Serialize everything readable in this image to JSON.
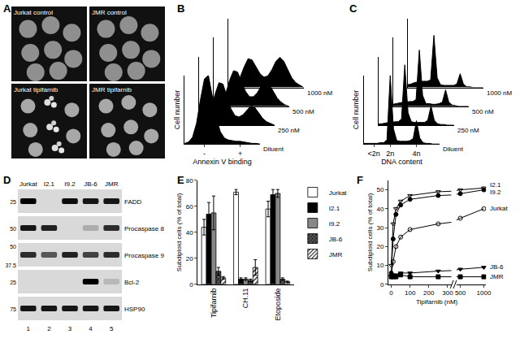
{
  "panel_labels": [
    "A",
    "B",
    "C",
    "D",
    "E",
    "F"
  ],
  "panel_a": {
    "images": [
      {
        "label": "Jurkat control"
      },
      {
        "label": "JMR control"
      },
      {
        "label": "Jurkat tipifarnib"
      },
      {
        "label": "JMR tipifarnib"
      }
    ]
  },
  "panel_d": {
    "lanes": [
      "Jurkat",
      "I2.1",
      "I9.2",
      "JB-6",
      "JMR"
    ],
    "lane_numbers": [
      1,
      2,
      3,
      4,
      5
    ],
    "blots": [
      {
        "protein": "FADD",
        "mw_markers": [
          25
        ],
        "intensity": [
          1,
          0,
          0.95,
          0.9,
          0.9
        ]
      },
      {
        "protein": "Procaspase 8",
        "mw_markers": [
          50
        ],
        "intensity": [
          0.9,
          0.85,
          0,
          0.2,
          0.8
        ]
      },
      {
        "protein": "Procaspase 9",
        "mw_markers": [
          50,
          37.5
        ],
        "intensity": [
          0.8,
          0.6,
          0.85,
          0.7,
          0.8
        ]
      },
      {
        "protein": "Bcl-2",
        "mw_markers": [
          25
        ],
        "intensity": [
          0,
          0,
          0,
          1,
          0.15
        ]
      },
      {
        "protein": "HSP90",
        "mw_markers": [
          75
        ],
        "intensity": [
          0.9,
          0.9,
          0.9,
          0.9,
          0.9
        ]
      }
    ]
  },
  "chart_data": [
    {
      "type": "area",
      "xlabel": "Annexin V binding",
      "ylabel": "Cell number",
      "color": "#000000",
      "x": [
        0,
        1,
        2,
        3,
        4,
        5,
        6,
        7,
        8,
        9,
        10,
        11,
        12,
        13,
        14,
        15,
        16,
        17,
        18,
        19
      ],
      "xlim": [
        0,
        19
      ],
      "xticks": [
        {
          "value": 5,
          "label": "-"
        },
        {
          "value": 14,
          "label": "+"
        }
      ],
      "ylim": [
        0,
        100
      ],
      "tick_labels": "x",
      "series": [
        {
          "name": "Diluent",
          "values": [
            1,
            3,
            10,
            30,
            65,
            95,
            100,
            70,
            38,
            18,
            9,
            6,
            5,
            4,
            4,
            3,
            2,
            1,
            1,
            0
          ]
        },
        {
          "name": "250 nM",
          "values": [
            1,
            3,
            8,
            22,
            45,
            62,
            60,
            42,
            24,
            14,
            12,
            15,
            22,
            28,
            26,
            18,
            10,
            5,
            2,
            0
          ]
        },
        {
          "name": "500 nM",
          "values": [
            1,
            2,
            7,
            18,
            38,
            52,
            50,
            36,
            22,
            14,
            14,
            20,
            30,
            36,
            32,
            22,
            12,
            6,
            2,
            0
          ]
        },
        {
          "name": "1000 nM",
          "values": [
            1,
            2,
            6,
            15,
            30,
            42,
            40,
            30,
            20,
            15,
            17,
            26,
            38,
            44,
            38,
            26,
            14,
            7,
            3,
            0
          ]
        }
      ]
    },
    {
      "type": "area",
      "xlabel": "DNA content",
      "ylabel": "Cell number",
      "color": "#000000",
      "x": [
        0,
        1,
        2,
        3,
        4,
        5,
        6,
        7,
        8,
        9,
        10,
        11,
        12,
        13,
        14,
        15,
        16,
        17,
        18,
        19,
        20,
        21,
        22,
        23
      ],
      "xlim": [
        0,
        23
      ],
      "xticks": [
        {
          "value": 3,
          "label": "<2n"
        },
        {
          "value": 8,
          "label": "2n"
        },
        {
          "value": 16,
          "label": "4n"
        }
      ],
      "ylim": [
        0,
        100
      ],
      "tick_labels": "x",
      "series": [
        {
          "name": "Diluent",
          "values": [
            1,
            1,
            1,
            1,
            1,
            2,
            2,
            6,
            100,
            22,
            5,
            4,
            4,
            4,
            5,
            8,
            34,
            9,
            2,
            1,
            1,
            0,
            0,
            0
          ]
        },
        {
          "name": "250 nM",
          "values": [
            2,
            2,
            3,
            4,
            4,
            5,
            5,
            9,
            88,
            18,
            5,
            4,
            4,
            4,
            4,
            7,
            28,
            7,
            2,
            1,
            1,
            0,
            0,
            0
          ]
        },
        {
          "name": "500 nM",
          "values": [
            3,
            4,
            5,
            6,
            6,
            7,
            7,
            10,
            82,
            16,
            4,
            4,
            3,
            3,
            4,
            6,
            24,
            6,
            2,
            1,
            0,
            0,
            0,
            0
          ]
        },
        {
          "name": "1000 nM",
          "values": [
            4,
            5,
            7,
            8,
            9,
            9,
            9,
            11,
            76,
            14,
            4,
            3,
            3,
            3,
            3,
            5,
            20,
            5,
            1,
            1,
            0,
            0,
            0,
            0
          ]
        }
      ]
    },
    {
      "type": "bar",
      "ylabel": "Subdiploid cells (% of total)",
      "categories": [
        "Tipifarnib",
        "CH.11",
        "Etoposide"
      ],
      "ylim": [
        0,
        80
      ],
      "yticks": [
        0,
        20,
        40,
        60,
        80
      ],
      "legend": "right",
      "series": [
        {
          "name": "Jurkat",
          "color": "#ffffff",
          "marker": "solid",
          "values": [
            44,
            71,
            58
          ],
          "errors": [
            6,
            2,
            6
          ]
        },
        {
          "name": "I2.1",
          "color": "#000000",
          "marker": "solid",
          "values": [
            54,
            4,
            69
          ],
          "errors": [
            9,
            1,
            4
          ]
        },
        {
          "name": "I9.2",
          "color": "#888888",
          "marker": "solid",
          "values": [
            55,
            4,
            70
          ],
          "errors": [
            13,
            1,
            3
          ]
        },
        {
          "name": "JB-6",
          "color": "#555555",
          "marker": "crosshatch",
          "values": [
            10,
            3,
            4
          ],
          "errors": [
            3,
            1,
            1
          ]
        },
        {
          "name": "JMR",
          "color": "#ffffff",
          "marker": "hatch",
          "values": [
            5,
            13,
            2
          ],
          "errors": [
            1,
            6,
            0.5
          ]
        }
      ]
    },
    {
      "type": "line",
      "xlabel": "Tipifarnib (nM)",
      "ylabel": "Subdiploid cells (% of total)",
      "x": [
        0,
        10,
        25,
        50,
        100,
        250,
        500,
        1000
      ],
      "xlim": [
        [
          -15,
          320
        ],
        [
          420,
          1050
        ]
      ],
      "xticks": [
        0,
        100,
        200,
        300,
        500,
        1000
      ],
      "ylim": [
        0,
        55
      ],
      "yticks": [
        0,
        10,
        20,
        30,
        40,
        50
      ],
      "series": [
        {
          "name": "I2.1",
          "color": "#000000",
          "marker": "triangle-down-open",
          "values": [
            10,
            32,
            40,
            44,
            47,
            49,
            50,
            51
          ]
        },
        {
          "name": "I9.2",
          "color": "#000000",
          "marker": "circle",
          "values": [
            6,
            24,
            37,
            42,
            45,
            47,
            48,
            50
          ]
        },
        {
          "name": "Jurkat",
          "color": "#000000",
          "marker": "circle-open",
          "values": [
            5,
            12,
            20,
            25,
            29,
            32,
            35,
            40
          ]
        },
        {
          "name": "JB-6",
          "color": "#000000",
          "marker": "triangle-down",
          "values": [
            4,
            5,
            5,
            6,
            6,
            7,
            8,
            9
          ]
        },
        {
          "name": "JMR",
          "color": "#000000",
          "marker": "square",
          "values": [
            4,
            4,
            4,
            5,
            4,
            4,
            4,
            4
          ]
        }
      ]
    }
  ]
}
